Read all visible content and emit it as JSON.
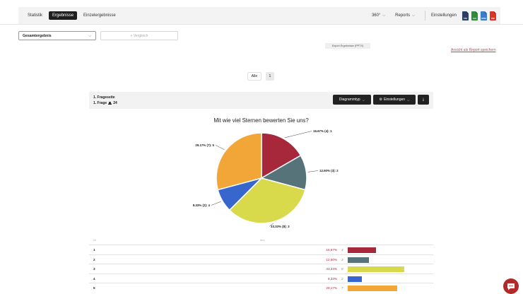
{
  "nav": {
    "items": [
      "Statistik",
      "Ergebnisse",
      "Einzelergebnisse"
    ],
    "active_index": 1
  },
  "toolbar": {
    "dropdown_360": "360°",
    "reports_label": "Reports",
    "settings_label": "Einstellungen",
    "exports": [
      {
        "label": "CSV",
        "icon": "csv-file-icon",
        "color": "#2d3e66"
      },
      {
        "label": "XLS",
        "icon": "xls-file-icon",
        "color": "#2f8a3a"
      },
      {
        "label": "SPSS",
        "icon": "spss-file-icon",
        "color": "#3b7bc8"
      },
      {
        "label": "PDF",
        "icon": "pdf-file-icon",
        "color": "#d9332a"
      }
    ],
    "tooltip": "Export Ergebnisse (PPTX)"
  },
  "filters": {
    "result_select": "Gesamtergebnis",
    "compare_button": "+ Vergleich"
  },
  "save_link": "Ansicht als Report speichern",
  "pagination": {
    "all_label": "Alle",
    "page": "1"
  },
  "question": {
    "page_label": "1. Frageseite",
    "question_label": "1. Frage",
    "respondents": "24",
    "buttons": {
      "chart_type": "Diagrammtyp",
      "settings": "Einstellungen",
      "download_icon": "download-icon"
    }
  },
  "chart_data": {
    "type": "pie",
    "title": "Mit wie viel Sternen bewerten Sie uns?",
    "slices": [
      {
        "category": "1",
        "value": 4,
        "label": "16.67% (4): 1",
        "color": "#a8283b"
      },
      {
        "category": "2",
        "value": 3,
        "label": "12.50% (3): 2",
        "color": "#557378"
      },
      {
        "category": "3",
        "value": 8,
        "label": "33.33% (8): 3",
        "color": "#d9d94c"
      },
      {
        "category": "4",
        "value": 2,
        "label": "8.33% (2): 4",
        "color": "#3767cc"
      },
      {
        "category": "5",
        "value": 7,
        "label": "29.17% (7): 5",
        "color": "#f3a638"
      }
    ]
  },
  "table": {
    "headers": [
      "Nr.",
      "Anz."
    ],
    "rows": [
      {
        "idx": "1",
        "pct": "16,67%",
        "count": "4",
        "value": 4,
        "color": "#a8283b",
        "pct_color": "#a8283b"
      },
      {
        "idx": "2",
        "pct": "12,50%",
        "count": "3",
        "value": 3,
        "color": "#557378",
        "pct_color": "#a8283b"
      },
      {
        "idx": "3",
        "pct": "33,33%",
        "count": "8",
        "value": 8,
        "color": "#d9d94c",
        "pct_color": "#a8283b"
      },
      {
        "idx": "4",
        "pct": "8,33%",
        "count": "2",
        "value": 2,
        "color": "#3767cc",
        "pct_color": "#a8283b"
      },
      {
        "idx": "5",
        "pct": "29,17%",
        "count": "7",
        "value": 7,
        "color": "#f3a638",
        "pct_color": "#a8283b"
      }
    ]
  },
  "chat_icon": "chat-bubble-icon"
}
